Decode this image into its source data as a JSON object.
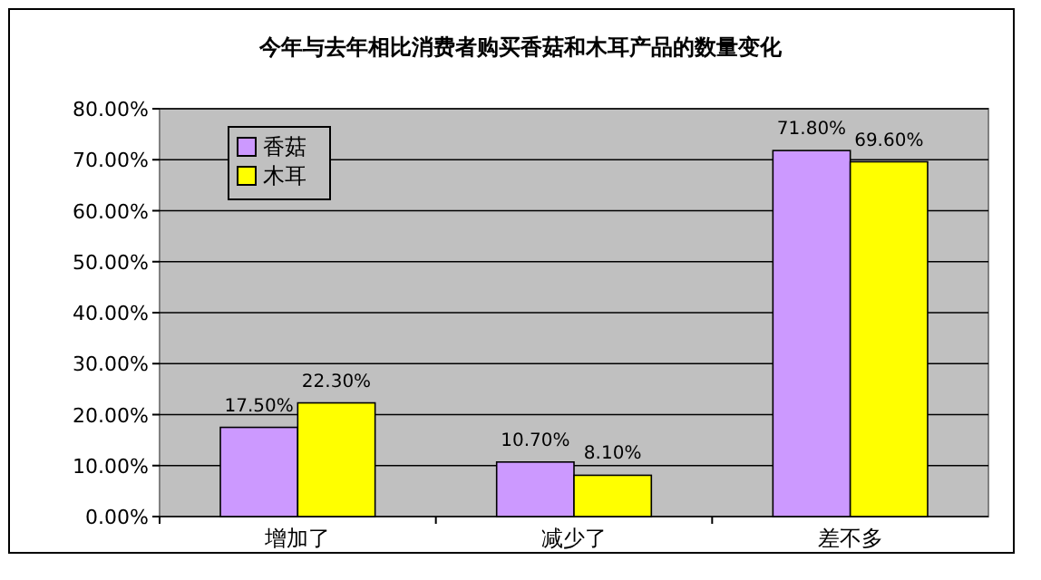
{
  "chart_data": {
    "type": "bar",
    "title": "今年与去年相比消费者购买香菇和木耳产品的数量变化",
    "categories": [
      "增加了",
      "减少了",
      "差不多"
    ],
    "series": [
      {
        "name": "香菇",
        "color": "#cc99ff",
        "values": [
          17.5,
          10.7,
          71.8
        ],
        "value_labels": [
          "17.50%",
          "10.70%",
          "71.80%"
        ]
      },
      {
        "name": "木耳",
        "color": "#ffff00",
        "values": [
          22.3,
          8.1,
          69.6
        ],
        "value_labels": [
          "22.30%",
          "8.10%",
          "69.60%"
        ]
      }
    ],
    "ylim": [
      0,
      80
    ],
    "yticks": [
      {
        "value": 0,
        "label": "0.00%"
      },
      {
        "value": 10,
        "label": "10.00%"
      },
      {
        "value": 20,
        "label": "20.00%"
      },
      {
        "value": 30,
        "label": "30.00%"
      },
      {
        "value": 40,
        "label": "40.00%"
      },
      {
        "value": 50,
        "label": "50.00%"
      },
      {
        "value": 60,
        "label": "60.00%"
      },
      {
        "value": 70,
        "label": "70.00%"
      },
      {
        "value": 80,
        "label": "80.00%"
      }
    ],
    "grid": "y",
    "legend": "top left"
  }
}
